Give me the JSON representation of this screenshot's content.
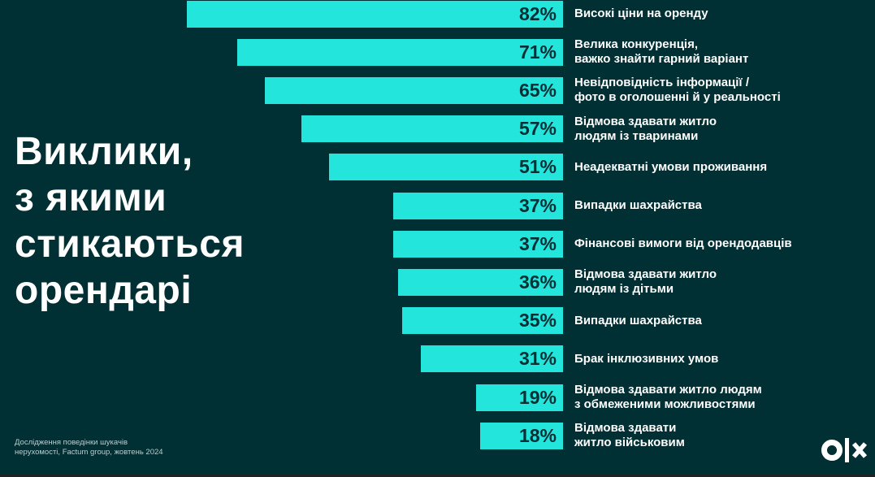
{
  "title": "Виклики,\nз якими\nстикаються\nорендарі",
  "source": "Дослідження поведінки шукачів\nнерухомості, Factum group, жовтень 2024",
  "logo": "olx",
  "colors": {
    "background": "#002f34",
    "bar": "#23e5db",
    "bar_text": "#002f34",
    "label": "#ffffff"
  },
  "chart_data": {
    "type": "bar",
    "orientation": "horizontal",
    "title": "Виклики, з якими стикаються орендарі",
    "unit": "%",
    "xlim": [
      0,
      100
    ],
    "categories": [
      "Високі ціни на оренду",
      "Велика конкуренція,\nважко знайти гарний варіант",
      "Невідповідність інформації /\nфото в оголошенні й у реальності",
      "Відмова здавати житло\nлюдям із тваринами",
      "Неадекватні умови проживання",
      "Випадки шахрайства",
      "Фінансові вимоги від орендодавців",
      "Відмова здавати житло\nлюдям із дітьми",
      "Випадки шахрайства",
      "Брак інклюзивних умов",
      "Відмова здавати житло людям\nз обмеженими можливостями",
      "Відмова здавати\nжитло військовим"
    ],
    "values": [
      82,
      71,
      65,
      57,
      51,
      37,
      37,
      36,
      35,
      31,
      19,
      18
    ],
    "value_labels": [
      "82%",
      "71%",
      "65%",
      "57%",
      "51%",
      "37%",
      "37%",
      "36%",
      "35%",
      "31%",
      "19%",
      "18%"
    ]
  }
}
